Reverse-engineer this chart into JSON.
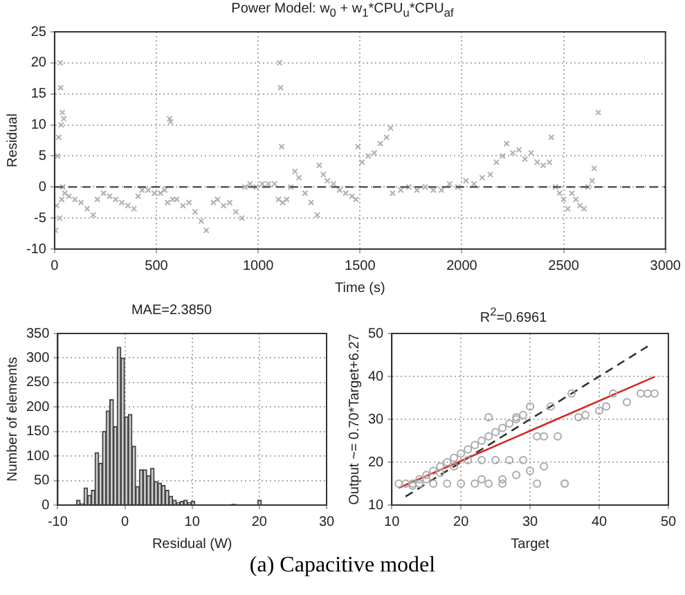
{
  "chart_data": [
    {
      "type": "scatter",
      "title": "Power Model: w$_{0}$ + w$_{1}$*CPU$_{u}$*CPU$_{af}$",
      "xlabel": "Time (s)",
      "ylabel": "Residual",
      "series": [
        {
          "color": "#b0b0b0",
          "marker": "cross",
          "x": [
            5,
            10,
            15,
            20,
            25,
            28,
            30,
            32,
            35,
            38,
            40,
            45,
            50,
            70,
            100,
            130,
            160,
            190,
            210,
            240,
            270,
            300,
            330,
            360,
            390,
            410,
            430,
            460,
            490,
            520,
            540,
            555,
            565,
            570,
            580,
            600,
            630,
            660,
            690,
            720,
            745,
            780,
            800,
            830,
            860,
            890,
            920,
            935,
            960,
            990,
            1020,
            1050,
            1080,
            1100,
            1105,
            1110,
            1115,
            1120,
            1140,
            1160,
            1180,
            1200,
            1230,
            1260,
            1290,
            1300,
            1320,
            1340,
            1370,
            1400,
            1430,
            1460,
            1480,
            1490,
            1510,
            1540,
            1570,
            1600,
            1630,
            1650,
            1660,
            1700,
            1740,
            1780,
            1820,
            1860,
            1900,
            1940,
            1980,
            2020,
            2060,
            2100,
            2140,
            2170,
            2200,
            2220,
            2250,
            2280,
            2310,
            2340,
            2370,
            2400,
            2430,
            2440,
            2460,
            2480,
            2500,
            2520,
            2540,
            2560,
            2580,
            2600,
            2620,
            2640,
            2650,
            2670
          ],
          "values": [
            -7,
            -3,
            5,
            8,
            -5,
            20,
            16,
            10,
            -2,
            12,
            0,
            11,
            -1,
            -1.5,
            -2,
            -2.5,
            -3.5,
            -4.5,
            -2,
            -1,
            -1.5,
            -2,
            -2.5,
            -3,
            -3.5,
            -1.5,
            -0.5,
            -0.5,
            -1,
            -1,
            -0.5,
            -2.5,
            11,
            10.5,
            -2,
            -2,
            -3,
            -2.5,
            -4,
            -5.5,
            -7,
            -2.5,
            -2,
            -3,
            -2.5,
            -4,
            -5,
            0,
            0.5,
            0,
            0.5,
            0.5,
            0.5,
            -2,
            20,
            16,
            6.5,
            -2.5,
            -2,
            0,
            2.5,
            1.5,
            -1,
            -2.5,
            -4.5,
            3.5,
            2,
            1,
            0.5,
            -0.5,
            -1,
            -1.5,
            -2,
            6.5,
            4,
            5,
            5.5,
            7,
            8,
            9.5,
            -1,
            -0.5,
            0,
            -0.5,
            0,
            -0.5,
            -0.5,
            0.5,
            0,
            1,
            0.5,
            1.5,
            2,
            4,
            5,
            7,
            5.5,
            6,
            4.5,
            5.5,
            4,
            3.5,
            4,
            8,
            0,
            -1,
            -2,
            -3.5,
            -1,
            -2,
            -3,
            -3.5,
            0,
            1,
            3,
            12
          ]
        }
      ],
      "xlim": [
        0,
        3000
      ],
      "xticks": [
        0,
        500,
        1000,
        1500,
        2000,
        2500,
        3000
      ],
      "ylim": [
        -10,
        25
      ],
      "yticks": [
        -10,
        -5,
        0,
        5,
        10,
        15,
        20,
        25
      ],
      "grid": true,
      "ref_lines": [
        {
          "axis": "y",
          "value": 0,
          "color": "#555555",
          "line_style": "dashed"
        }
      ]
    },
    {
      "type": "histogram",
      "title": "MAE=2.3850",
      "xlabel": "Residual (W)",
      "ylabel": "Number of elements",
      "color": "#cccccc",
      "bins": [
        -7.2,
        -6.65,
        -6.1,
        -5.55,
        -5,
        -4.45,
        -3.9,
        -3.35,
        -2.8,
        -2.25,
        -1.7,
        -1.15,
        -0.6,
        -0.05,
        0.5,
        1.05,
        1.6,
        2.15,
        2.7,
        3.25,
        3.8,
        4.35,
        4.9,
        5.45,
        6,
        6.55,
        7.1,
        7.65,
        8.2,
        8.75,
        9.3,
        9.85,
        10.4,
        10.95,
        11.5,
        12.05,
        12.6,
        13.15,
        13.7,
        14.25,
        14.8,
        15.35,
        15.9,
        16.45,
        17,
        17.55,
        18.1,
        18.65,
        19.2,
        19.75,
        20.3
      ],
      "values": [
        10,
        3,
        35,
        20,
        30,
        107,
        85,
        150,
        192,
        215,
        160,
        322,
        300,
        180,
        185,
        120,
        38,
        72,
        72,
        60,
        75,
        48,
        45,
        40,
        30,
        18,
        10,
        5,
        8,
        10,
        5,
        8,
        0,
        0,
        0,
        0,
        0,
        0,
        0,
        0,
        0,
        0,
        2,
        0,
        0,
        0,
        0,
        0,
        0,
        10
      ],
      "xlim": [
        -10,
        30
      ],
      "xticks": [
        -10,
        0,
        10,
        20,
        30
      ],
      "ylim": [
        0,
        350
      ],
      "yticks": [
        0,
        50,
        100,
        150,
        200,
        250,
        300,
        350
      ],
      "grid": true
    },
    {
      "type": "scatter",
      "title": "R$^{2}$=0.6961",
      "xlabel": "Target",
      "ylabel": "Output ~= 0.70*Target+6.27",
      "series": [
        {
          "color": "#aaaaaa",
          "marker": "circle",
          "x": [
            11,
            12,
            13,
            14,
            15,
            16,
            17,
            18,
            19,
            20,
            21,
            22,
            23,
            24,
            25,
            26,
            27,
            28,
            29,
            30,
            14,
            16,
            18,
            20,
            22,
            24,
            26,
            28,
            30,
            32,
            13,
            15,
            17,
            19,
            21,
            23,
            25,
            27,
            29,
            33,
            36,
            37,
            38,
            40,
            41,
            42,
            44,
            46,
            47,
            48,
            34,
            35,
            31,
            26,
            23,
            35,
            32,
            24,
            28,
            31
          ],
          "values": [
            15,
            15,
            15,
            16,
            17,
            18,
            19,
            20,
            21,
            22,
            23,
            24,
            25,
            26,
            27,
            28,
            29,
            30,
            31,
            33,
            15,
            15,
            15,
            15,
            15,
            15,
            16,
            17,
            18,
            19,
            14.5,
            16,
            17.5,
            19,
            20.5,
            20.5,
            20.5,
            20.5,
            20.5,
            33,
            36,
            30.5,
            31,
            32,
            33,
            36,
            34,
            36,
            36,
            36,
            26,
            15,
            15,
            15,
            16,
            15,
            26,
            30.5,
            30.5,
            26
          ]
        },
        {
          "type": "line",
          "color": "#d62728",
          "marker": "none",
          "line_style": "solid",
          "x": [
            11,
            48
          ],
          "values": [
            14,
            39.9
          ]
        },
        {
          "type": "line",
          "color": "#333333",
          "marker": "none",
          "line_style": "dashed",
          "x": [
            12,
            47
          ],
          "values": [
            12,
            47
          ]
        }
      ],
      "xlim": [
        10,
        50
      ],
      "xticks": [
        10,
        20,
        30,
        40,
        50
      ],
      "ylim": [
        10,
        50
      ],
      "yticks": [
        10,
        20,
        30,
        40,
        50
      ],
      "grid": true,
      "annotations": [
        "(a) Capacitive model"
      ]
    }
  ]
}
